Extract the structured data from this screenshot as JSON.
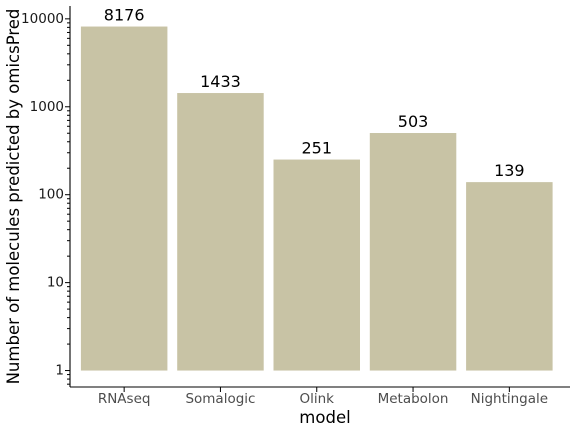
{
  "chart_data": {
    "type": "bar",
    "categories": [
      "RNAseq",
      "Somalogic",
      "Olink",
      "Metabolon",
      "Nightingale"
    ],
    "values": [
      8176,
      1433,
      251,
      503,
      139
    ],
    "data_labels": [
      "8176",
      "1433",
      "251",
      "503",
      "139"
    ],
    "title": "",
    "xlabel": "model",
    "ylabel": "Number of molecules predicted by omicsPred",
    "y_scale": "log10",
    "ylim": [
      0.65,
      14000
    ],
    "y_ticks": [
      1,
      10,
      100,
      1000,
      10000
    ],
    "y_tick_labels": [
      "1",
      "10",
      "100",
      "1000",
      "10000"
    ],
    "grid": false,
    "legend": "none",
    "bar_color": "#c8c3a5"
  }
}
